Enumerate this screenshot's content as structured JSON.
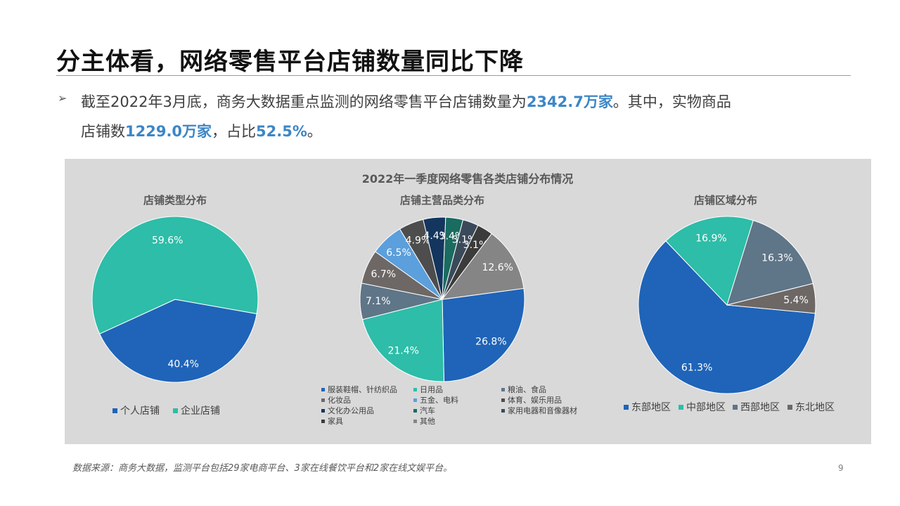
{
  "title": "分主体看，网络零售平台店铺数量同比下降",
  "summary": {
    "bullet": "➢",
    "p1": "截至2022年3月底，商务大数据重点监测的网络零售平台店铺数量为",
    "v1": "2342.7万家",
    "p2": "。其中，实物商品",
    "p3": "店铺数",
    "v2": "1229.0万家",
    "p4": "，占比",
    "v3": "52.5%",
    "p5": "。"
  },
  "source": "数据来源：商务大数据，监测平台包括29家电商平台、3家在线餐饮平台和2家在线文娱平台。",
  "page_number": "9",
  "chart_data": {
    "title": "2022年一季度网络零售各类店铺分布情况",
    "charts": [
      {
        "type": "pie",
        "title": "店铺类型分布",
        "labels": [
          "个人店铺",
          "企业店铺"
        ],
        "values": [
          40.4,
          59.6
        ],
        "data_labels": [
          "40.4%",
          "59.6%"
        ],
        "colors": [
          "#1f64b8",
          "#2dbda8"
        ],
        "legend": "bottom"
      },
      {
        "type": "pie",
        "title": "店铺主营品类分布",
        "labels": [
          "服装鞋帽、针纺织品",
          "日用品",
          "粮油、食品",
          "化妆品",
          "五金、电料",
          "体育、娱乐用品",
          "文化办公用品",
          "汽车",
          "家用电器和音像器材",
          "家具",
          "其他"
        ],
        "values": [
          26.8,
          21.4,
          7.1,
          6.7,
          6.5,
          4.9,
          4.4,
          3.4,
          3.1,
          3.1,
          12.6
        ],
        "data_labels": [
          "26.8%",
          "21.4%",
          "7.1%",
          "6.7%",
          "6.5%",
          "4.9%",
          "4.4%",
          "3.4%",
          "3.1%",
          "3.1%",
          "12.6%"
        ],
        "colors": [
          "#1f64b8",
          "#2dbda8",
          "#5f7588",
          "#6d6866",
          "#5b9fdc",
          "#4d4d4d",
          "#14365e",
          "#1a6b60",
          "#3a4a5a",
          "#3b3b3b",
          "#858585"
        ],
        "legend": "bottom"
      },
      {
        "type": "pie",
        "title": "店铺区域分布",
        "labels": [
          "东部地区",
          "中部地区",
          "西部地区",
          "东北地区"
        ],
        "values": [
          61.3,
          16.9,
          16.3,
          5.4
        ],
        "data_labels": [
          "61.3%",
          "16.9%",
          "16.3%",
          "5.4%"
        ],
        "colors": [
          "#1f64b8",
          "#2dbda8",
          "#5f7588",
          "#6d6866"
        ],
        "legend": "bottom"
      }
    ]
  }
}
